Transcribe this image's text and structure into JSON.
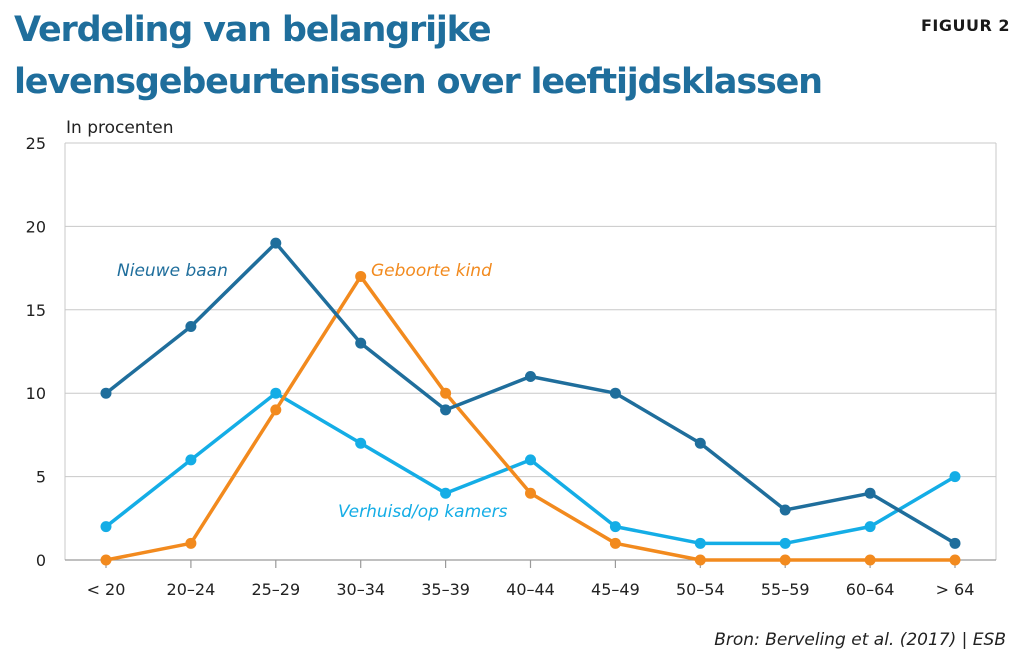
{
  "figure_label": "FIGUUR 2",
  "source": "Bron: Berveling et al. (2017) | ESB",
  "chart_data": {
    "type": "line",
    "title": "Verdeling van belangrijke levensgebeurtenissen over leeftijdsklassen",
    "ylabel": "In procenten",
    "xlabel": "",
    "ylim": [
      0,
      25
    ],
    "yticks": [
      0,
      5,
      10,
      15,
      20,
      25
    ],
    "grid": true,
    "categories": [
      "< 20",
      "20–24",
      "25–29",
      "30–34",
      "35–39",
      "40–44",
      "45–49",
      "50–54",
      "55–59",
      "60–64",
      "> 64"
    ],
    "series": [
      {
        "name": "Nieuwe baan",
        "color": "#1f6e9c",
        "values": [
          10,
          14,
          19,
          13,
          9,
          11,
          10,
          7,
          3,
          4,
          1
        ]
      },
      {
        "name": "Geboorte kind",
        "color": "#f28a1e",
        "values": [
          0,
          1,
          9,
          17,
          10,
          4,
          1,
          0,
          0,
          0,
          0
        ]
      },
      {
        "name": "Verhuisd/op kamers",
        "color": "#14ade6",
        "values": [
          2,
          6,
          10,
          7,
          4,
          6,
          2,
          1,
          1,
          2,
          5
        ]
      }
    ]
  }
}
